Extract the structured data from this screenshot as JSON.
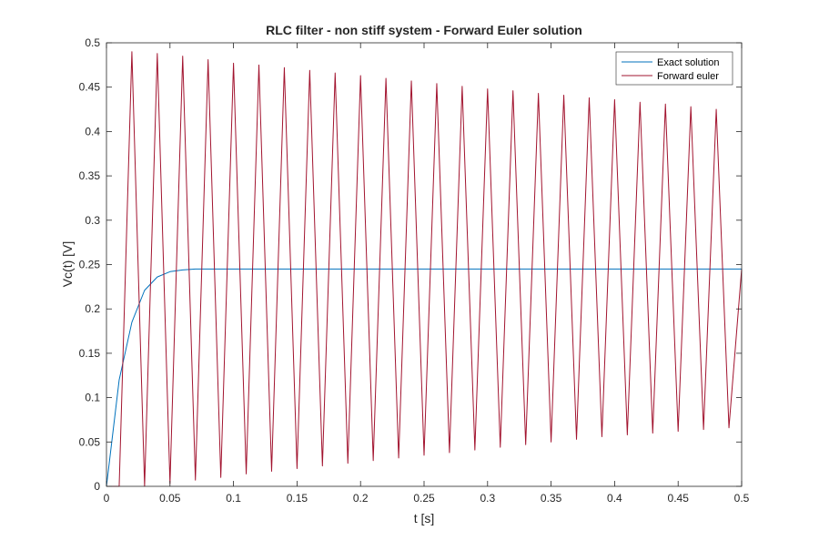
{
  "chart_data": {
    "type": "line",
    "title": "RLC filter - non stiff system - Forward Euler solution",
    "xlabel": "t [s]",
    "ylabel": "Vc(t) [V]",
    "xlim": [
      0,
      0.5
    ],
    "ylim": [
      0,
      0.5
    ],
    "xticks": [
      0,
      0.05,
      0.1,
      0.15,
      0.2,
      0.25,
      0.3,
      0.35,
      0.4,
      0.45,
      0.5
    ],
    "xtick_labels": [
      "0",
      "0.05",
      "0.1",
      "0.15",
      "0.2",
      "0.25",
      "0.3",
      "0.35",
      "0.4",
      "0.45",
      "0.5"
    ],
    "yticks": [
      0,
      0.05,
      0.1,
      0.15,
      0.2,
      0.25,
      0.3,
      0.35,
      0.4,
      0.45,
      0.5
    ],
    "ytick_labels": [
      "0",
      "0.05",
      "0.1",
      "0.15",
      "0.2",
      "0.25",
      "0.3",
      "0.35",
      "0.4",
      "0.45",
      "0.5"
    ],
    "grid": false,
    "legend_position": "top-right",
    "series": [
      {
        "name": "Exact solution",
        "color": "#0072bd",
        "x": [
          0,
          0.01,
          0.02,
          0.03,
          0.04,
          0.05,
          0.06,
          0.07,
          0.08,
          0.09,
          0.1,
          0.5
        ],
        "y": [
          0,
          0.12,
          0.185,
          0.221,
          0.236,
          0.242,
          0.244,
          0.245,
          0.245,
          0.245,
          0.245,
          0.245
        ]
      },
      {
        "name": "Forward euler",
        "color": "#a2142f",
        "x": [
          0,
          0.01,
          0.02,
          0.03,
          0.04,
          0.05,
          0.06,
          0.07,
          0.08,
          0.09,
          0.1,
          0.11,
          0.12,
          0.13,
          0.14,
          0.15,
          0.16,
          0.17,
          0.18,
          0.19,
          0.2,
          0.21,
          0.22,
          0.23,
          0.24,
          0.25,
          0.26,
          0.27,
          0.28,
          0.29,
          0.3,
          0.31,
          0.32,
          0.33,
          0.34,
          0.35,
          0.36,
          0.37,
          0.38,
          0.39,
          0.4,
          0.41,
          0.42,
          0.43,
          0.44,
          0.45,
          0.46,
          0.47,
          0.48,
          0.49,
          0.5
        ],
        "y": [
          0,
          0,
          0.49,
          0,
          0.488,
          0.003,
          0.485,
          0.007,
          0.481,
          0.01,
          0.477,
          0.014,
          0.475,
          0.017,
          0.472,
          0.02,
          0.469,
          0.023,
          0.466,
          0.026,
          0.463,
          0.029,
          0.46,
          0.032,
          0.457,
          0.035,
          0.454,
          0.038,
          0.451,
          0.041,
          0.448,
          0.044,
          0.446,
          0.047,
          0.443,
          0.05,
          0.441,
          0.053,
          0.438,
          0.056,
          0.436,
          0.058,
          0.433,
          0.06,
          0.431,
          0.062,
          0.428,
          0.064,
          0.425,
          0.066,
          0.245
        ]
      }
    ]
  }
}
